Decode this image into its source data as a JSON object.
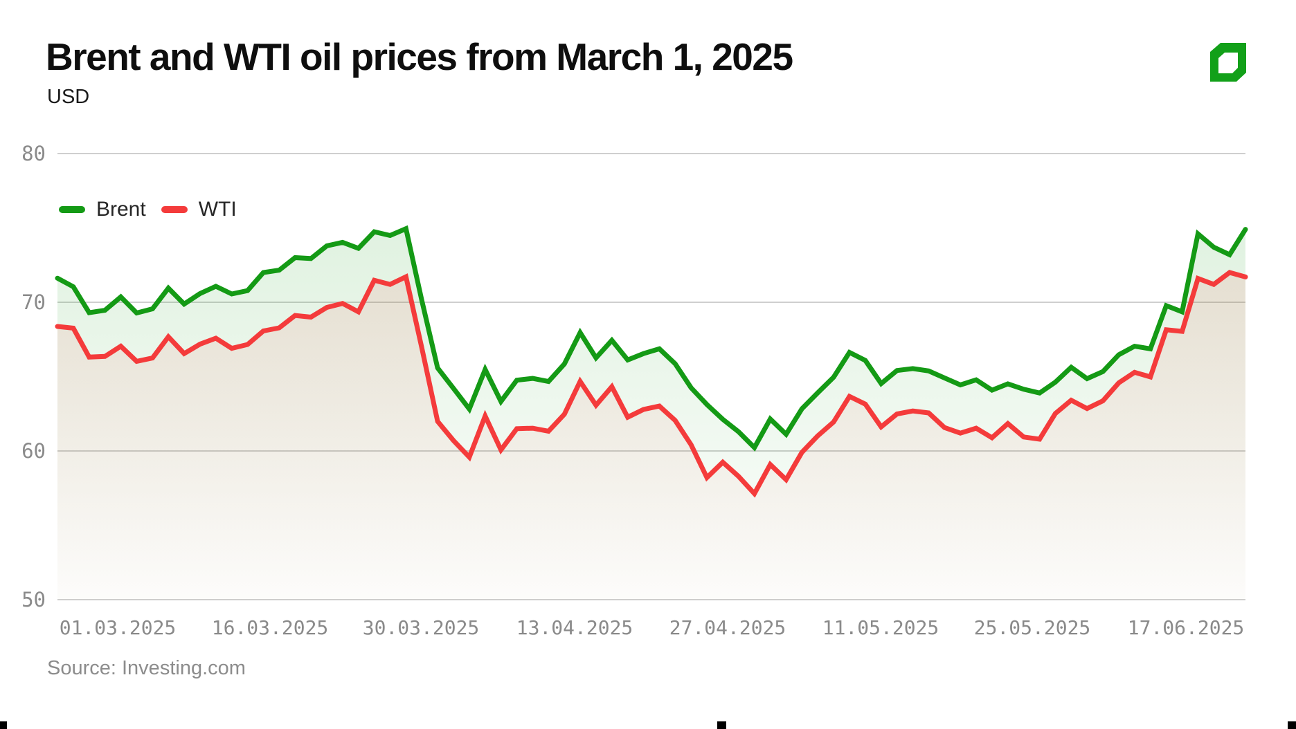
{
  "header": {
    "title": "Brent and WTI oil prices from March 1, 2025",
    "subtitle": "USD"
  },
  "source_note": "Source: Investing.com",
  "colors": {
    "brent": "#149a15",
    "wti": "#f43b3b",
    "grid": "#cfcfcf",
    "axis_text": "#8a8a8a",
    "logo_green": "#12a019"
  },
  "icons": {
    "brand_logo": "green-beveled-square-logo"
  },
  "chart_data": {
    "type": "line",
    "title": "Brent and WTI oil prices from March 1, 2025",
    "ylabel": "USD",
    "ylim": [
      50,
      80
    ],
    "yticks": [
      80,
      70,
      60,
      50
    ],
    "grid": true,
    "legend_position": "top-left",
    "area_fill": true,
    "xticklabels": [
      "01.03.2025",
      "16.03.2025",
      "30.03.2025",
      "13.04.2025",
      "27.04.2025",
      "11.05.2025",
      "25.05.2025",
      "17.06.2025"
    ],
    "x": [
      "03.03",
      "04.03",
      "05.03",
      "06.03",
      "07.03",
      "10.03",
      "11.03",
      "12.03",
      "13.03",
      "14.03",
      "17.03",
      "18.03",
      "19.03",
      "20.03",
      "21.03",
      "24.03",
      "25.03",
      "26.03",
      "27.03",
      "28.03",
      "31.03",
      "01.04",
      "02.04",
      "03.04",
      "04.04",
      "07.04",
      "08.04",
      "09.04",
      "10.04",
      "11.04",
      "14.04",
      "15.04",
      "16.04",
      "17.04",
      "21.04",
      "22.04",
      "23.04",
      "24.04",
      "25.04",
      "28.04",
      "29.04",
      "30.04",
      "01.05",
      "02.05",
      "05.05",
      "06.05",
      "07.05",
      "08.05",
      "09.05",
      "12.05",
      "13.05",
      "14.05",
      "15.05",
      "16.05",
      "19.05",
      "20.05",
      "21.05",
      "22.05",
      "23.05",
      "27.05",
      "28.05",
      "29.05",
      "30.05",
      "02.06",
      "03.06",
      "04.06",
      "05.06",
      "06.06",
      "09.06",
      "10.06",
      "11.06",
      "12.06",
      "13.06",
      "16.06",
      "17.06",
      "18.06"
    ],
    "series": [
      {
        "name": "Brent",
        "color": "#149a15",
        "values": [
          71.62,
          71.04,
          69.3,
          69.46,
          70.36,
          69.28,
          69.56,
          70.95,
          69.88,
          70.58,
          71.07,
          70.56,
          70.78,
          72.0,
          72.16,
          73.0,
          72.94,
          73.79,
          74.03,
          73.63,
          74.74,
          74.49,
          74.95,
          70.14,
          65.58,
          64.21,
          62.82,
          65.48,
          63.33,
          64.76,
          64.88,
          64.67,
          65.85,
          67.96,
          66.26,
          67.44,
          66.12,
          66.55,
          66.87,
          65.86,
          64.25,
          63.12,
          62.13,
          61.29,
          60.23,
          62.15,
          61.12,
          62.84,
          63.91,
          64.96,
          66.63,
          66.09,
          64.53,
          65.41,
          65.54,
          65.38,
          64.91,
          64.44,
          64.78,
          64.09,
          64.51,
          64.15,
          63.9,
          64.63,
          65.63,
          64.86,
          65.34,
          66.47,
          67.04,
          66.87,
          69.77,
          69.36,
          74.6,
          73.7,
          73.2,
          74.9
        ]
      },
      {
        "name": "WTI",
        "color": "#f43b3b",
        "values": [
          68.37,
          68.26,
          66.31,
          66.36,
          67.04,
          66.03,
          66.25,
          67.68,
          66.55,
          67.18,
          67.58,
          66.9,
          67.16,
          68.07,
          68.28,
          69.11,
          69.0,
          69.65,
          69.92,
          69.36,
          71.48,
          71.2,
          71.71,
          66.95,
          61.99,
          60.7,
          59.58,
          62.35,
          60.07,
          61.5,
          61.53,
          61.33,
          62.47,
          64.68,
          63.08,
          64.32,
          62.27,
          62.79,
          63.02,
          62.05,
          60.42,
          58.21,
          59.24,
          58.29,
          57.13,
          59.09,
          58.07,
          59.91,
          61.02,
          61.95,
          63.67,
          63.15,
          61.62,
          62.49,
          62.69,
          62.56,
          61.57,
          61.2,
          61.53,
          60.89,
          61.84,
          60.94,
          60.79,
          62.52,
          63.41,
          62.85,
          63.37,
          64.58,
          65.29,
          64.98,
          68.15,
          68.04,
          71.6,
          71.2,
          72.0,
          71.7
        ]
      }
    ]
  }
}
